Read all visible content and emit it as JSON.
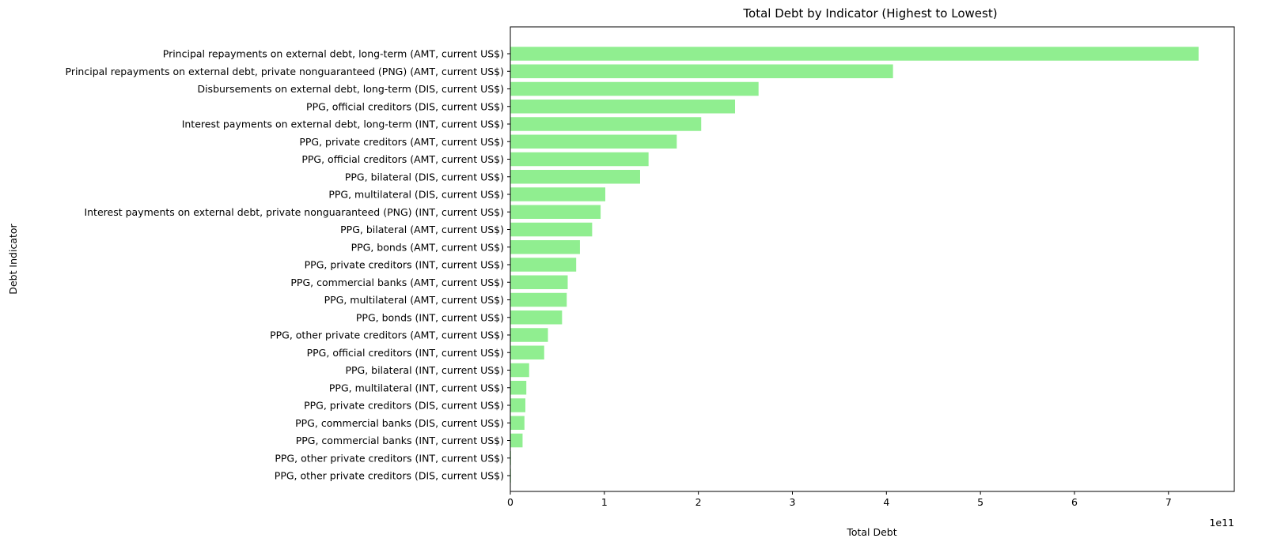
{
  "chart_data": {
    "type": "bar",
    "orientation": "horizontal",
    "title": "Total Debt by Indicator (Highest to Lowest)",
    "xlabel": "Total Debt",
    "ylabel": "Debt Indicator",
    "x_offset_label": "1e11",
    "xlim": [
      0,
      7.7
    ],
    "x_unit_multiplier": 100000000000.0,
    "xticks": [
      "0",
      "1",
      "2",
      "3",
      "4",
      "5",
      "6",
      "7"
    ],
    "bar_color": "#90ee90",
    "grid": false,
    "categories": [
      "Principal repayments on external debt, long-term (AMT, current US$)",
      "Principal repayments on external debt, private nonguaranteed (PNG) (AMT, current US$)",
      "Disbursements on external debt, long-term (DIS, current US$)",
      "PPG, official creditors (DIS, current US$)",
      "Interest payments on external debt, long-term (INT, current US$)",
      "PPG, private creditors (AMT, current US$)",
      "PPG, official creditors (AMT, current US$)",
      "PPG, bilateral (DIS, current US$)",
      "PPG, multilateral (DIS, current US$)",
      "Interest payments on external debt, private nonguaranteed (PNG) (INT, current US$)",
      "PPG, bilateral (AMT, current US$)",
      "PPG, bonds (AMT, current US$)",
      "PPG, private creditors (INT, current US$)",
      "PPG, commercial banks (AMT, current US$)",
      "PPG, multilateral (AMT, current US$)",
      "PPG, bonds (INT, current US$)",
      "PPG, other private creditors (AMT, current US$)",
      "PPG, official creditors (INT, current US$)",
      "PPG, bilateral (INT, current US$)",
      "PPG, multilateral (INT, current US$)",
      "PPG, private creditors (DIS, current US$)",
      "PPG, commercial banks (DIS, current US$)",
      "PPG, commercial banks (INT, current US$)",
      "PPG, other private creditors (INT, current US$)",
      "PPG, other private creditors (DIS, current US$)"
    ],
    "values": [
      7.32,
      4.07,
      2.64,
      2.39,
      2.03,
      1.77,
      1.47,
      1.38,
      1.01,
      0.96,
      0.87,
      0.74,
      0.7,
      0.61,
      0.6,
      0.55,
      0.4,
      0.36,
      0.2,
      0.17,
      0.16,
      0.15,
      0.13,
      0.005,
      0.004
    ]
  }
}
